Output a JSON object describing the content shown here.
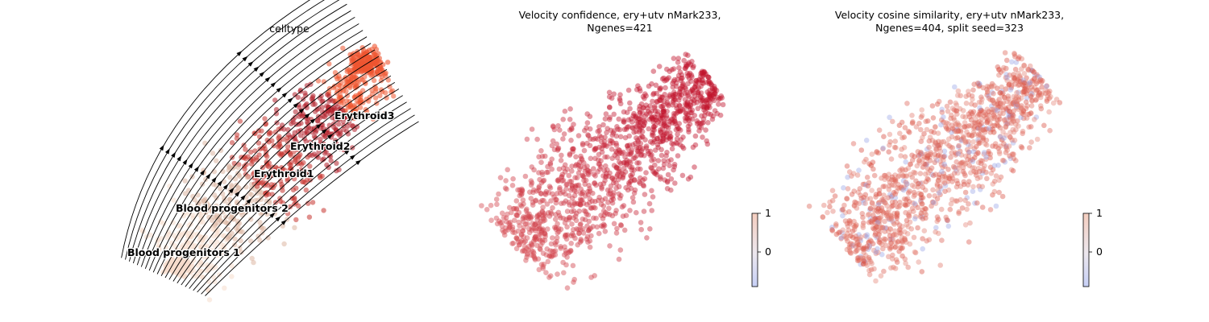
{
  "chart_data": [
    {
      "type": "scatter",
      "title": "celltype",
      "colors": {
        "Blood progenitors 1": "#f6dccc",
        "Blood progenitors 2": "#ddb7a3",
        "Erythroid1": "#c6352f",
        "Erythroid2": "#b3202c",
        "Erythroid3": "#ee5530",
        "streamlines": "#000000"
      },
      "clusters": [
        {
          "name": "Blood progenitors 1",
          "x": 0.15,
          "y": 0.07
        },
        {
          "name": "Blood progenitors 2",
          "x": 0.27,
          "y": 0.34
        },
        {
          "name": "Erythroid1",
          "x": 0.42,
          "y": 0.48
        },
        {
          "name": "Erythroid2",
          "x": 0.52,
          "y": 0.64
        },
        {
          "name": "Erythroid3",
          "x": 0.64,
          "y": 0.8
        }
      ],
      "streamlines": true
    },
    {
      "type": "scatter",
      "title": "Velocity confidence, ery+utv nMark233,",
      "subtitle": "Ngenes=421",
      "colormap": "coolwarm",
      "point_color": "#c0142d",
      "colorbar": {
        "ticks": [
          "1",
          "0"
        ],
        "range": [
          -0.8,
          1
        ]
      }
    },
    {
      "type": "scatter",
      "title": "Velocity cosine similarity, ery+utv nMark233,",
      "subtitle": "Ngenes=404, split seed=323",
      "colormap": "coolwarm",
      "point_color": "#d7473a",
      "minority_color": "#9aa8e6",
      "colorbar": {
        "ticks": [
          "1",
          "0"
        ],
        "range": [
          -0.8,
          1
        ]
      }
    }
  ]
}
